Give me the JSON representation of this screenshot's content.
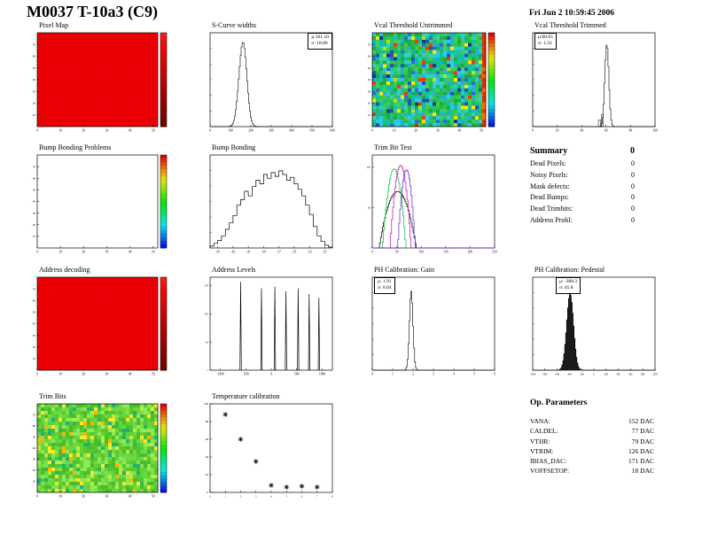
{
  "page": {
    "title": "M0037 T-10a3 (C9)",
    "timestamp": "Fri Jun  2 10:59:45 2006"
  },
  "summary": {
    "title": "Summary",
    "total": "0",
    "rows": [
      {
        "label": "Dead Pixels:",
        "value": "0"
      },
      {
        "label": "Noisy Pixels:",
        "value": "0"
      },
      {
        "label": "Mask defects:",
        "value": "0"
      },
      {
        "label": "Dead Bumps:",
        "value": "0"
      },
      {
        "label": "Dead Trimbits:",
        "value": "0"
      },
      {
        "label": "Address Probl:",
        "value": "0"
      }
    ]
  },
  "op_parameters": {
    "title": "Op. Parameters",
    "rows": [
      {
        "label": "VANA:",
        "value": "152 DAC"
      },
      {
        "label": "CALDEL:",
        "value": "77 DAC"
      },
      {
        "label": "VTHR:",
        "value": "79 DAC"
      },
      {
        "label": "VTRIM:",
        "value": "126 DAC"
      },
      {
        "label": "IBIAS_DAC:",
        "value": "171 DAC"
      },
      {
        "label": "VOFFSETOP:",
        "value": "18 DAC"
      }
    ]
  },
  "chart_data": [
    {
      "id": "pixel_map",
      "type": "heatmap",
      "title": "Pixel Map",
      "style": "solid_red",
      "xlim": [
        0,
        52
      ],
      "ylim": [
        0,
        80
      ],
      "x_ticks": [
        0,
        10,
        20,
        30,
        40,
        50
      ],
      "y_ticks": [
        10,
        20,
        30,
        40,
        50,
        60,
        70
      ],
      "colorbar": "red",
      "seed": 3
    },
    {
      "id": "scurve_widths",
      "type": "hist",
      "title": "S-Curve widths",
      "mean": 161.1,
      "sigma": 18.8,
      "draw_sigma": 19,
      "peak_frac": 0.9,
      "xlim": [
        0,
        600
      ],
      "x_ticks": [
        0,
        100,
        200,
        300,
        400,
        500,
        600
      ],
      "stats": [
        "μ:161.10",
        "σ: 18.80"
      ]
    },
    {
      "id": "vcal_threshold_untrimmed",
      "type": "heatmap",
      "title": "Vcal Threshold Untrimmed",
      "style": "noise_green_blue",
      "xlim": [
        0,
        52
      ],
      "ylim": [
        0,
        80
      ],
      "x_ticks": [
        0,
        10,
        20,
        30,
        40,
        50
      ],
      "y_ticks": [
        10,
        20,
        30,
        40,
        50,
        60,
        70
      ],
      "colorbar": "rainbow",
      "seed": 11
    },
    {
      "id": "vcal_threshold_trimmed",
      "type": "hist",
      "title": "Vcal Threshold Trimmed",
      "mean": 60.65,
      "sigma": 1.33,
      "draw_sigma": 1.6,
      "peak_frac": 0.88,
      "xlim": [
        0,
        100
      ],
      "x_ticks": [
        0,
        20,
        40,
        60,
        80,
        100
      ],
      "stats": [
        "μ:60.65",
        "σ: 1.33"
      ],
      "bumps": [
        {
          "x": 54.5,
          "h": 0.07
        },
        {
          "x": 57,
          "h": 0.13
        }
      ]
    },
    {
      "id": "bump_bonding_problems",
      "type": "heatmap",
      "title": "Bump Bonding Problems",
      "style": "white",
      "xlim": [
        0,
        52
      ],
      "ylim": [
        0,
        80
      ],
      "x_ticks": [
        0,
        10,
        20,
        30,
        40,
        50
      ],
      "y_ticks": [
        10,
        20,
        30,
        40,
        50,
        60,
        70
      ],
      "colorbar": "rainbow"
    },
    {
      "id": "bump_bonding",
      "type": "hist_bins",
      "title": "Bump Bonding",
      "xlim": [
        -46,
        -30
      ],
      "x_ticks": [
        -45,
        -43,
        -41,
        -39,
        -37,
        -35,
        -33,
        -31
      ],
      "bins": [
        0.02,
        0.05,
        0.08,
        0.13,
        0.2,
        0.27,
        0.35,
        0.46,
        0.52,
        0.61,
        0.56,
        0.66,
        0.73,
        0.69,
        0.79,
        0.75,
        0.81,
        0.77,
        0.83,
        0.79,
        0.73,
        0.76,
        0.69,
        0.63,
        0.56,
        0.46,
        0.36,
        0.23,
        0.13,
        0.07,
        0.03,
        0.01
      ]
    },
    {
      "id": "trim_bit_test",
      "type": "multi_hist",
      "title": "Trim Bit Test",
      "xlim": [
        0,
        250
      ],
      "x_ticks": [
        0,
        50,
        100,
        150,
        200,
        250
      ],
      "logy": true,
      "log_ticks": [
        "1",
        "10",
        "10²"
      ],
      "series": [
        {
          "color": "#000000",
          "mean": 52,
          "sigma": 15,
          "amp": 25
        },
        {
          "color": "#00bb33",
          "mean": 45,
          "sigma": 8,
          "amp": 90
        },
        {
          "color": "#cc00aa",
          "mean": 58,
          "sigma": 7,
          "amp": 110
        },
        {
          "color": "#5522cc",
          "mean": 70,
          "sigma": 6,
          "amp": 85
        }
      ]
    },
    {
      "id": "address_decoding",
      "type": "heatmap",
      "title": "Address decoding",
      "style": "solid_red",
      "xlim": [
        0,
        52
      ],
      "ylim": [
        0,
        80
      ],
      "x_ticks": [
        0,
        10,
        20,
        30,
        40,
        50
      ],
      "y_ticks": [
        10,
        20,
        30,
        40,
        50,
        60,
        70
      ],
      "colorbar": "red",
      "seed": 5
    },
    {
      "id": "address_levels",
      "type": "spikes",
      "title": "Address Levels",
      "xlim": [
        -1200,
        1200
      ],
      "x_ticks": [
        -1000,
        -500,
        0,
        500,
        1000
      ],
      "logy": true,
      "log_ticks": [
        "1",
        "10",
        "10²",
        "10³"
      ],
      "spikes": [
        {
          "x": -600,
          "h": 0.95
        },
        {
          "x": -192,
          "h": 0.88
        },
        {
          "x": 72,
          "h": 0.9
        },
        {
          "x": 288,
          "h": 0.85
        },
        {
          "x": 528,
          "h": 0.88
        },
        {
          "x": 744,
          "h": 0.82
        },
        {
          "x": 936,
          "h": 0.78
        }
      ]
    },
    {
      "id": "ph_calibration_gain",
      "type": "hist",
      "title": "PH Calibration: Gain",
      "mean": 1.91,
      "sigma": 0.04,
      "draw_sigma": 0.09,
      "peak_frac": 0.85,
      "xlim": [
        0,
        6
      ],
      "x_ticks": [
        0,
        1,
        2,
        3,
        4,
        5,
        6
      ],
      "stats": [
        "μ: 1.91",
        "σ: 0.04"
      ]
    },
    {
      "id": "ph_calibration_pedestal",
      "type": "hist",
      "title": "PH Calibration: Pedestal",
      "mean": -388.3,
      "sigma": 45.8,
      "draw_sigma": 55,
      "peak_frac": 0.82,
      "fill": true,
      "xlim": [
        -1000,
        1000
      ],
      "x_ticks": [
        -1000,
        -800,
        -600,
        -400,
        -200,
        0,
        200,
        400,
        600,
        800,
        1000
      ],
      "stats": [
        "μ: -388.3",
        "σ: 45.8"
      ]
    },
    {
      "id": "trim_bits",
      "type": "heatmap",
      "title": "Trim Bits",
      "style": "noise_green",
      "xlim": [
        0,
        52
      ],
      "ylim": [
        0,
        80
      ],
      "x_ticks": [
        0,
        10,
        20,
        30,
        40,
        50
      ],
      "y_ticks": [
        10,
        20,
        30,
        40,
        50,
        60,
        70
      ],
      "colorbar": "rainbow",
      "seed": 21
    },
    {
      "id": "temperature_calibration",
      "type": "scatter",
      "title": "Temperature calibration",
      "marker": "star",
      "x": [
        1,
        2,
        3,
        4,
        5,
        6,
        7
      ],
      "y": [
        88,
        60,
        35,
        8,
        6,
        7,
        6
      ],
      "xlim": [
        0,
        8
      ],
      "ylim": [
        0,
        100
      ],
      "x_ticks": [
        0,
        1,
        2,
        3,
        4,
        5,
        6,
        7,
        8
      ],
      "y_ticks": [
        0,
        20,
        40,
        60,
        80,
        100
      ]
    }
  ]
}
